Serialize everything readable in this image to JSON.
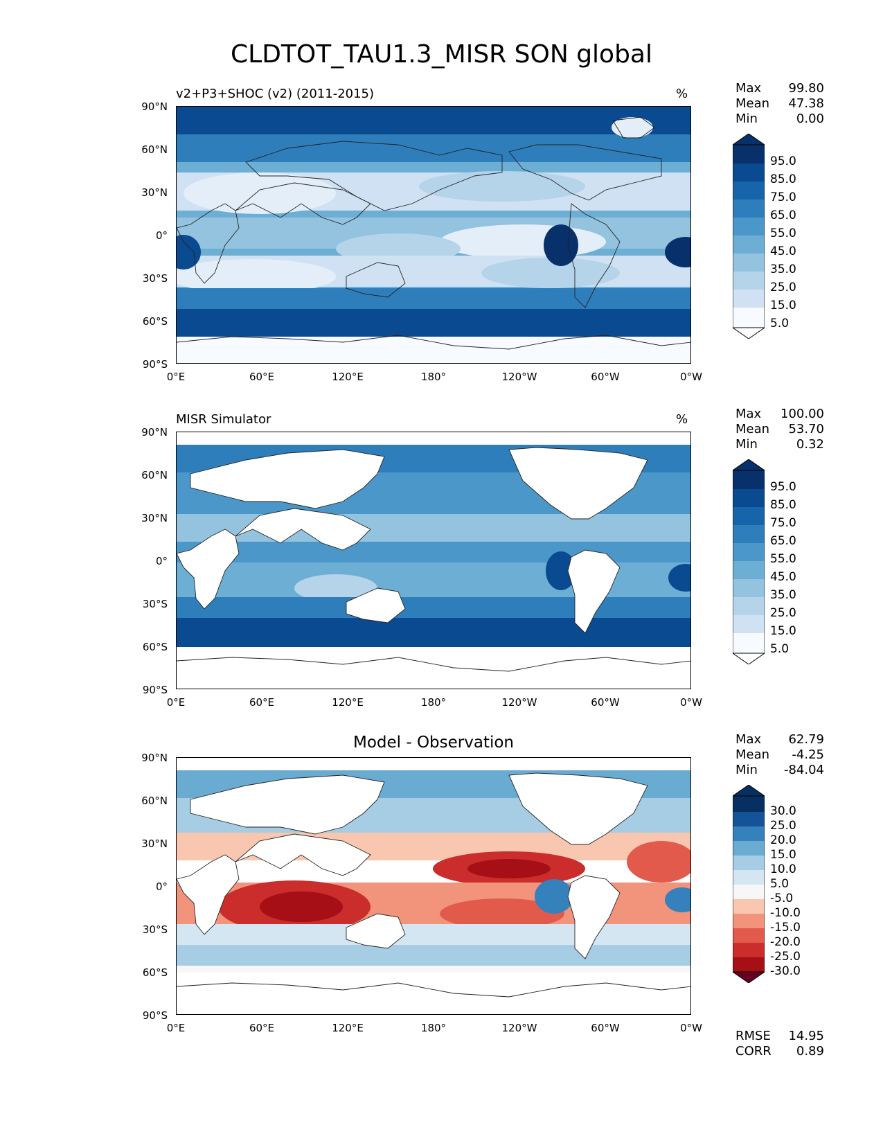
{
  "figure": {
    "title": "CLDTOT_TAU1.3_MISR SON global",
    "colors": {
      "blues": [
        "#f7fbff",
        "#e3eef9",
        "#cfe1f2",
        "#b5d4e9",
        "#93c3df",
        "#6daed5",
        "#4b97c9",
        "#2f7ebc",
        "#1864aa",
        "#0a4a90",
        "#08306b"
      ],
      "diverging": [
        "#67001f",
        "#a50f15",
        "#cb2d2c",
        "#e25a4c",
        "#f2937c",
        "#f9c6b0",
        "#f7f7f7",
        "#f7f7f7",
        "#d4e6f1",
        "#a6cde3",
        "#6aabd2",
        "#3581bc",
        "#155399",
        "#053061"
      ]
    }
  },
  "axes": {
    "lat_labels": [
      "90°N",
      "60°N",
      "30°N",
      "0°",
      "30°S",
      "60°S",
      "90°S"
    ],
    "lon_labels": [
      "0°E",
      "60°E",
      "120°E",
      "180°",
      "120°W",
      "60°W",
      "0°W"
    ]
  },
  "panels": [
    {
      "id": "model",
      "title": "v2+P3+SHOC (v2) (2011-2015)",
      "units": "%",
      "stats": {
        "max_label": "Max",
        "max": "99.80",
        "mean_label": "Mean",
        "mean": "47.38",
        "min_label": "Min",
        "min": "0.00"
      },
      "colorbar": {
        "type": "sequential",
        "levels": [
          "95.0",
          "85.0",
          "75.0",
          "65.0",
          "55.0",
          "45.0",
          "35.0",
          "25.0",
          "15.0",
          "5.0"
        ]
      }
    },
    {
      "id": "obs",
      "title": "MISR Simulator",
      "units": "%",
      "stats": {
        "max_label": "Max",
        "max": "100.00",
        "mean_label": "Mean",
        "mean": "53.70",
        "min_label": "Min",
        "min": "0.32"
      },
      "colorbar": {
        "type": "sequential",
        "levels": [
          "95.0",
          "85.0",
          "75.0",
          "65.0",
          "55.0",
          "45.0",
          "35.0",
          "25.0",
          "15.0",
          "5.0"
        ]
      }
    },
    {
      "id": "diff",
      "title": "Model - Observation",
      "units": "",
      "stats": {
        "max_label": "Max",
        "max": "62.79",
        "mean_label": "Mean",
        "mean": "-4.25",
        "min_label": "Min",
        "min": "-84.04"
      },
      "colorbar": {
        "type": "diverging",
        "levels": [
          "30.0",
          "25.0",
          "20.0",
          "15.0",
          "10.0",
          "5.0",
          "-5.0",
          "-10.0",
          "-15.0",
          "-20.0",
          "-25.0",
          "-30.0"
        ]
      },
      "rmse_label": "RMSE",
      "rmse": "14.95",
      "corr_label": "CORR",
      "corr": "0.89"
    }
  ]
}
